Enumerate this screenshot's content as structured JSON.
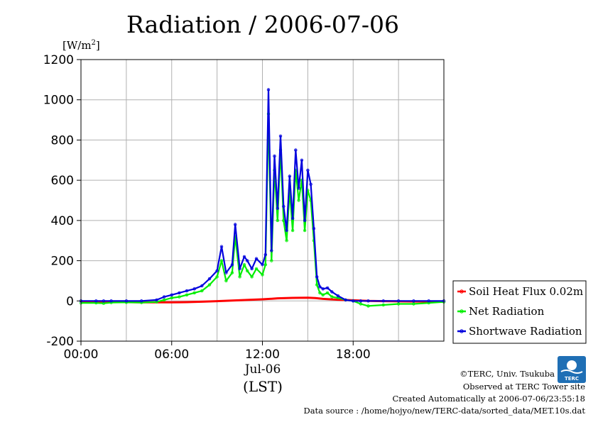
{
  "chart_data": {
    "type": "line",
    "title": "Radiation / 2006-07-06",
    "yunit": "[W/m",
    "yunit_sup": "2",
    "yunit_close": "]",
    "ylim": [
      -200,
      1200
    ],
    "yticks": [
      -200,
      0,
      200,
      400,
      600,
      800,
      1000,
      1200
    ],
    "ytick_labels": [
      "-200",
      "0",
      "200",
      "400",
      "600",
      "800",
      "1000",
      "1200"
    ],
    "xlim": [
      0,
      24
    ],
    "xticks": [
      0,
      6,
      12,
      18
    ],
    "xtick_labels": [
      "00:00",
      "06:00",
      "12:00",
      "18:00"
    ],
    "xsub_label": "Jul-06",
    "xlabel": "(LST)",
    "grid": true,
    "legend_position": "bottom-right",
    "series": [
      {
        "name": "Soil Heat Flux 0.02m",
        "color": "#ff0000",
        "x": [
          0,
          1,
          2,
          3,
          4,
          5,
          6,
          7,
          8,
          9,
          10,
          11,
          12,
          12.5,
          13,
          14,
          15,
          15.5,
          16,
          17,
          18,
          19,
          20,
          21,
          22,
          23,
          24
        ],
        "y": [
          -5,
          -5,
          -6,
          -6,
          -7,
          -7,
          -7,
          -6,
          -4,
          -1,
          2,
          5,
          8,
          10,
          13,
          15,
          16,
          14,
          10,
          6,
          3,
          0,
          -1,
          -2,
          -3,
          -3,
          -4
        ]
      },
      {
        "name": "Net Radiation",
        "color": "#00ee00",
        "x": [
          0,
          1,
          1.5,
          2,
          3,
          4,
          5,
          5.5,
          6,
          6.5,
          7,
          7.5,
          8,
          8.5,
          9,
          9.3,
          9.6,
          10,
          10.2,
          10.5,
          10.8,
          11,
          11.3,
          11.6,
          12,
          12.2,
          12.4,
          12.6,
          12.8,
          13,
          13.2,
          13.4,
          13.6,
          13.8,
          14,
          14.2,
          14.4,
          14.6,
          14.8,
          15,
          15.2,
          15.4,
          15.6,
          15.8,
          16,
          16.3,
          16.6,
          17,
          17.5,
          18,
          18.5,
          19,
          20,
          21,
          22,
          23,
          24
        ],
        "y": [
          -10,
          -10,
          -12,
          -8,
          -7,
          -8,
          -5,
          5,
          15,
          20,
          30,
          40,
          50,
          80,
          120,
          200,
          100,
          140,
          320,
          120,
          180,
          150,
          120,
          160,
          130,
          180,
          930,
          200,
          650,
          400,
          750,
          400,
          300,
          550,
          350,
          650,
          500,
          600,
          350,
          550,
          500,
          300,
          80,
          40,
          30,
          40,
          20,
          15,
          5,
          0,
          -15,
          -25,
          -20,
          -15,
          -15,
          -10,
          -5
        ]
      },
      {
        "name": "Shortwave Radiation",
        "color": "#0000dd",
        "x": [
          0,
          1,
          1.5,
          2,
          3,
          4,
          5,
          5.5,
          6,
          6.5,
          7,
          7.5,
          8,
          8.5,
          9,
          9.3,
          9.6,
          10,
          10.2,
          10.5,
          10.8,
          11,
          11.3,
          11.6,
          12,
          12.2,
          12.4,
          12.6,
          12.8,
          13,
          13.2,
          13.4,
          13.6,
          13.8,
          14,
          14.2,
          14.4,
          14.6,
          14.8,
          15,
          15.2,
          15.4,
          15.6,
          15.8,
          16,
          16.3,
          16.6,
          17,
          17.5,
          18,
          18.5,
          19,
          20,
          21,
          22,
          23,
          24
        ],
        "y": [
          0,
          0,
          0,
          0,
          0,
          0,
          5,
          20,
          30,
          40,
          50,
          60,
          75,
          110,
          150,
          270,
          140,
          180,
          380,
          160,
          220,
          200,
          160,
          210,
          180,
          230,
          1050,
          250,
          720,
          460,
          820,
          470,
          350,
          620,
          410,
          750,
          560,
          700,
          400,
          650,
          580,
          360,
          120,
          70,
          60,
          65,
          45,
          25,
          5,
          0,
          0,
          0,
          0,
          0,
          0,
          0,
          0
        ]
      }
    ]
  },
  "footer": {
    "copyright": "©TERC, Univ. Tsukuba",
    "observed": "Observed at TERC Tower site",
    "created": "Created Automatically at 2006-07-06/23:55:18",
    "source": "Data source : /home/hojyo/new/TERC-data/sorted_data/MET.10s.dat",
    "logo_text": "TERC"
  }
}
